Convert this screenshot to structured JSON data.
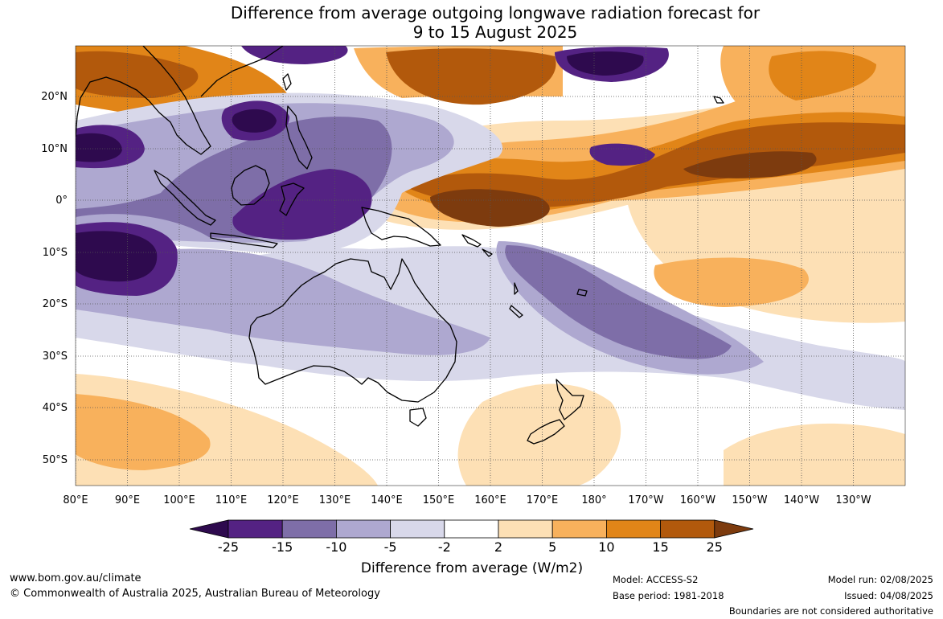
{
  "title_line1": "Difference from average outgoing longwave radiation forecast for",
  "title_line2": "9 to 15 August 2025",
  "lat_labels": [
    "20°N",
    "10°N",
    "0°",
    "10°S",
    "20°S",
    "30°S",
    "40°S",
    "50°S"
  ],
  "lon_labels": [
    "80°E",
    "90°E",
    "100°E",
    "110°E",
    "120°E",
    "130°E",
    "140°E",
    "150°E",
    "160°E",
    "170°E",
    "180°",
    "170°W",
    "160°W",
    "150°W",
    "140°W",
    "130°W"
  ],
  "colorbar": {
    "ticks": [
      "-25",
      "-15",
      "-10",
      "-5",
      "-2",
      "2",
      "5",
      "10",
      "15",
      "25"
    ],
    "colors": {
      "lt_-25": "#2e0a4e",
      "-25_-15": "#542283",
      "-15_-10": "#7e6ea8",
      "-10_-5": "#aea8d0",
      "-5_-2": "#d8d8ea",
      "-2_2": "#ffffff",
      "2_5": "#fde0b5",
      "5_10": "#f8b15c",
      "10_15": "#e18518",
      "15_25": "#b2590c",
      "gt_25": "#7d3b0e"
    },
    "label": "Difference from average (W/m2)"
  },
  "footer": {
    "website": "www.bom.gov.au/climate",
    "copyright": "© Commonwealth of Australia 2025, Australian Bureau of Meteorology",
    "model": "Model: ACCESS-S2",
    "base_period": "Base period: 1981-2018",
    "model_run": "Model run: 02/08/2025",
    "issued": "Issued: 04/08/2025",
    "disclaimer": "Boundaries are not considered authoritative"
  }
}
